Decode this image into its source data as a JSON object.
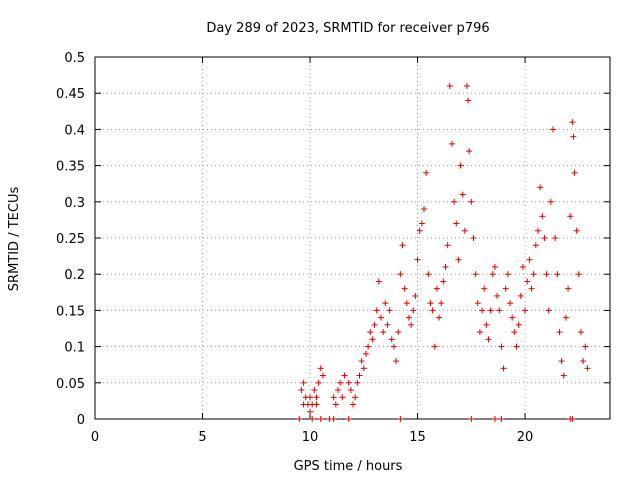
{
  "chart_data": {
    "type": "scatter",
    "title": "Day 289 of 2023, SRMTID for receiver p796",
    "xlabel": "GPS time / hours",
    "ylabel": "SRMTID / TECUs",
    "xlim": [
      0,
      23.95
    ],
    "ylim": [
      0,
      0.5
    ],
    "xticks": [
      0,
      5,
      10,
      15,
      20
    ],
    "xtick_labels": [
      "0",
      "5",
      "10",
      "15",
      "20"
    ],
    "yticks": [
      0,
      0.05,
      0.1,
      0.15,
      0.2,
      0.25,
      0.3,
      0.35,
      0.4,
      0.45,
      0.5
    ],
    "ytick_labels": [
      "0",
      "0.05",
      "0.1",
      "0.15",
      "0.2",
      "0.25",
      "0.3",
      "0.35",
      "0.4",
      "0.45",
      "0.5"
    ],
    "grid": true,
    "marker": "plus",
    "color": "#dd0000",
    "series": [
      {
        "name": "p796",
        "points": [
          [
            9.6,
            0.04
          ],
          [
            9.7,
            0.05
          ],
          [
            9.8,
            0.03
          ],
          [
            9.9,
            0.02
          ],
          [
            10.0,
            0.03
          ],
          [
            10.1,
            0.02
          ],
          [
            10.2,
            0.04
          ],
          [
            10.3,
            0.03
          ],
          [
            10.4,
            0.05
          ],
          [
            10.5,
            0.07
          ],
          [
            10.6,
            0.06
          ],
          [
            10.3,
            0.02
          ],
          [
            10.0,
            0.01
          ],
          [
            9.7,
            0.02
          ],
          [
            11.1,
            0.03
          ],
          [
            11.2,
            0.02
          ],
          [
            11.3,
            0.04
          ],
          [
            11.4,
            0.05
          ],
          [
            11.5,
            0.03
          ],
          [
            11.6,
            0.06
          ],
          [
            11.8,
            0.05
          ],
          [
            11.9,
            0.04
          ],
          [
            12.0,
            0.02
          ],
          [
            12.1,
            0.03
          ],
          [
            12.2,
            0.05
          ],
          [
            12.3,
            0.06
          ],
          [
            12.4,
            0.08
          ],
          [
            12.5,
            0.07
          ],
          [
            12.6,
            0.09
          ],
          [
            12.7,
            0.1
          ],
          [
            12.8,
            0.12
          ],
          [
            12.9,
            0.11
          ],
          [
            13.0,
            0.13
          ],
          [
            13.1,
            0.15
          ],
          [
            13.2,
            0.19
          ],
          [
            13.3,
            0.14
          ],
          [
            13.4,
            0.12
          ],
          [
            13.5,
            0.16
          ],
          [
            13.6,
            0.13
          ],
          [
            13.7,
            0.15
          ],
          [
            13.8,
            0.11
          ],
          [
            13.9,
            0.1
          ],
          [
            14.0,
            0.08
          ],
          [
            14.1,
            0.12
          ],
          [
            14.2,
            0.2
          ],
          [
            14.3,
            0.24
          ],
          [
            14.4,
            0.18
          ],
          [
            14.5,
            0.16
          ],
          [
            14.6,
            0.14
          ],
          [
            14.7,
            0.13
          ],
          [
            14.8,
            0.15
          ],
          [
            14.9,
            0.17
          ],
          [
            15.0,
            0.22
          ],
          [
            15.1,
            0.26
          ],
          [
            15.2,
            0.27
          ],
          [
            15.3,
            0.29
          ],
          [
            15.4,
            0.34
          ],
          [
            15.5,
            0.2
          ],
          [
            15.6,
            0.16
          ],
          [
            15.7,
            0.15
          ],
          [
            15.8,
            0.1
          ],
          [
            15.9,
            0.18
          ],
          [
            16.0,
            0.14
          ],
          [
            16.1,
            0.16
          ],
          [
            16.2,
            0.19
          ],
          [
            16.3,
            0.21
          ],
          [
            16.4,
            0.24
          ],
          [
            16.5,
            0.46
          ],
          [
            16.6,
            0.38
          ],
          [
            16.7,
            0.3
          ],
          [
            16.8,
            0.27
          ],
          [
            16.9,
            0.22
          ],
          [
            17.0,
            0.35
          ],
          [
            17.1,
            0.31
          ],
          [
            17.2,
            0.26
          ],
          [
            17.3,
            0.46
          ],
          [
            17.35,
            0.44
          ],
          [
            17.4,
            0.37
          ],
          [
            17.5,
            0.3
          ],
          [
            17.6,
            0.25
          ],
          [
            17.7,
            0.2
          ],
          [
            17.8,
            0.16
          ],
          [
            17.9,
            0.12
          ],
          [
            18.0,
            0.15
          ],
          [
            18.1,
            0.18
          ],
          [
            18.2,
            0.13
          ],
          [
            18.3,
            0.11
          ],
          [
            18.4,
            0.15
          ],
          [
            18.5,
            0.2
          ],
          [
            18.6,
            0.21
          ],
          [
            18.7,
            0.17
          ],
          [
            18.8,
            0.15
          ],
          [
            18.9,
            0.1
          ],
          [
            19.0,
            0.07
          ],
          [
            19.1,
            0.18
          ],
          [
            19.2,
            0.2
          ],
          [
            19.3,
            0.16
          ],
          [
            19.4,
            0.14
          ],
          [
            19.5,
            0.12
          ],
          [
            19.6,
            0.1
          ],
          [
            19.7,
            0.13
          ],
          [
            19.8,
            0.17
          ],
          [
            19.9,
            0.21
          ],
          [
            20.0,
            0.15
          ],
          [
            20.1,
            0.19
          ],
          [
            20.2,
            0.22
          ],
          [
            20.3,
            0.18
          ],
          [
            20.4,
            0.2
          ],
          [
            20.5,
            0.24
          ],
          [
            20.6,
            0.26
          ],
          [
            20.7,
            0.32
          ],
          [
            20.8,
            0.28
          ],
          [
            20.9,
            0.25
          ],
          [
            21.0,
            0.2
          ],
          [
            21.1,
            0.15
          ],
          [
            21.2,
            0.3
          ],
          [
            21.3,
            0.4
          ],
          [
            21.4,
            0.25
          ],
          [
            21.5,
            0.2
          ],
          [
            21.6,
            0.12
          ],
          [
            21.7,
            0.08
          ],
          [
            21.8,
            0.06
          ],
          [
            21.9,
            0.14
          ],
          [
            22.0,
            0.18
          ],
          [
            22.1,
            0.28
          ],
          [
            22.2,
            0.41
          ],
          [
            22.25,
            0.39
          ],
          [
            22.3,
            0.34
          ],
          [
            22.4,
            0.26
          ],
          [
            22.5,
            0.2
          ],
          [
            22.6,
            0.12
          ],
          [
            22.7,
            0.08
          ],
          [
            22.8,
            0.1
          ],
          [
            22.9,
            0.07
          ],
          [
            9.5,
            0.0
          ],
          [
            10.1,
            0.0
          ],
          [
            10.5,
            0.0
          ],
          [
            10.9,
            0.0
          ],
          [
            11.1,
            0.0
          ],
          [
            11.8,
            0.0
          ],
          [
            14.2,
            0.0
          ],
          [
            17.5,
            0.0
          ],
          [
            18.6,
            0.0
          ],
          [
            18.9,
            0.0
          ],
          [
            22.1,
            0.0
          ],
          [
            22.2,
            0.0
          ]
        ]
      }
    ]
  }
}
